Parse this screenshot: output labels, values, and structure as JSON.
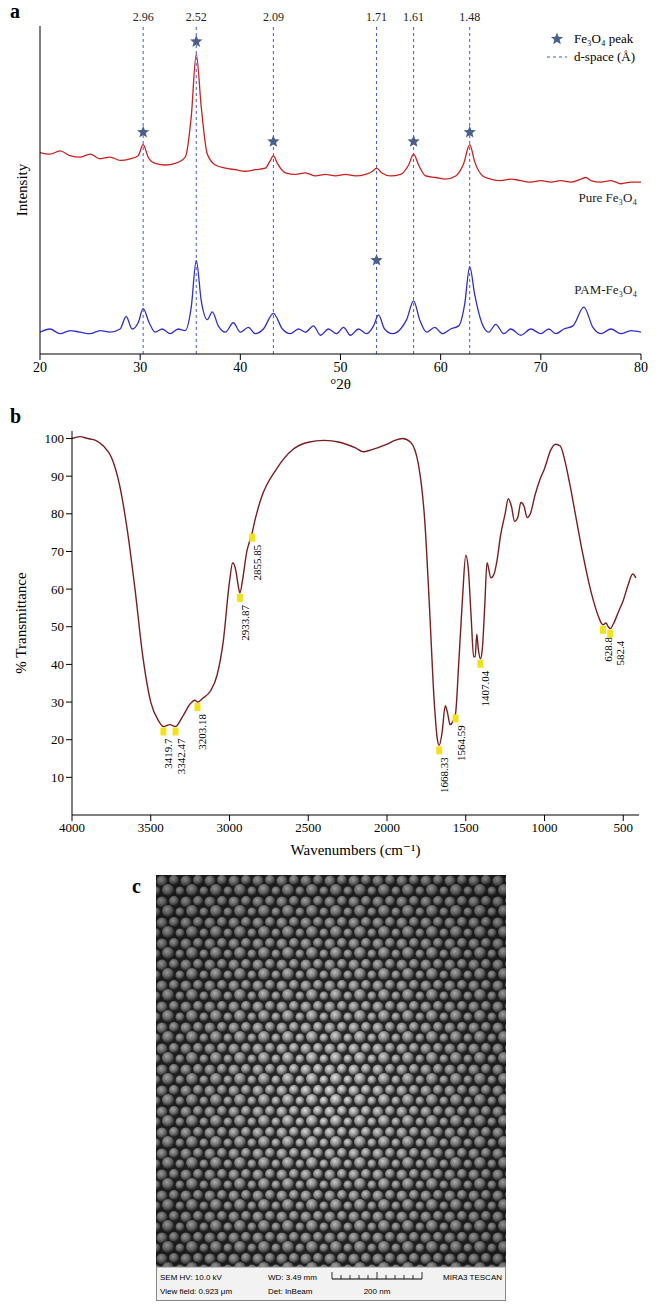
{
  "chart_data": [
    {
      "panel_label": "a",
      "type": "line",
      "x_label": "°2θ",
      "y_label": "Intensity",
      "xlim": [
        20,
        80
      ],
      "xticks": [
        20,
        30,
        40,
        50,
        60,
        70,
        80
      ],
      "ylim": [
        0,
        105
      ],
      "tick_labels": "x",
      "legend": "upper right",
      "series": [
        {
          "name": "Pure Fe₃O₄",
          "color": "#cc1f1f",
          "x": [
            20,
            21,
            22,
            23,
            24,
            25,
            26,
            27,
            28,
            29,
            29.8,
            30.3,
            30.8,
            31.5,
            32.5,
            33.5,
            34.5,
            35.1,
            35.6,
            36.1,
            36.7,
            37.5,
            38.5,
            39.5,
            40.5,
            41.5,
            42.5,
            43,
            43.3,
            43.7,
            44.5,
            45.5,
            46.5,
            47.5,
            48.5,
            49.5,
            50.5,
            51.5,
            52.5,
            53.2,
            53.6,
            54.1,
            55,
            56,
            56.8,
            57.3,
            57.8,
            58.5,
            59.5,
            60.5,
            61.5,
            62.3,
            62.9,
            63.4,
            64.2,
            65,
            66,
            67,
            68,
            69,
            70,
            71,
            72,
            73,
            74,
            74.5,
            75,
            76,
            77,
            78,
            79,
            80
          ],
          "values": [
            64.5,
            64,
            65,
            63.5,
            63,
            64,
            62.5,
            63,
            62,
            62.5,
            63.5,
            67,
            63,
            61,
            60.5,
            61,
            63,
            76,
            96,
            79,
            64,
            60.5,
            59.5,
            59,
            58.5,
            59,
            59.5,
            62,
            63.5,
            61,
            58,
            57.5,
            58,
            57,
            57.5,
            57,
            57.5,
            57,
            57.5,
            58.5,
            59.5,
            58,
            57,
            57.5,
            60.5,
            64,
            60.5,
            57,
            56.5,
            56,
            57,
            61,
            67,
            61.5,
            57,
            56,
            55.5,
            56,
            55.5,
            55,
            55.5,
            55,
            55.5,
            55,
            56,
            56.5,
            55.5,
            55,
            55.5,
            54.5,
            55,
            55
          ]
        },
        {
          "name": "PAM-Fe₃O₄",
          "color": "#2f2fd0",
          "x": [
            20,
            21,
            22,
            23,
            24,
            25,
            26,
            27,
            28,
            28.6,
            29.2,
            29.8,
            30.3,
            30.9,
            31.5,
            32.2,
            33,
            33.8,
            34.5,
            35.1,
            35.6,
            36.1,
            36.7,
            37.2,
            37.8,
            38.5,
            39.3,
            40,
            40.8,
            41.5,
            42.3,
            43.3,
            44.2,
            45,
            45.8,
            46.5,
            47.3,
            48,
            48.8,
            49.6,
            50.3,
            51,
            51.8,
            52.6,
            53.3,
            53.8,
            54.4,
            55.2,
            56,
            56.6,
            57.3,
            57.9,
            58.6,
            59.4,
            60.2,
            61,
            61.8,
            62.4,
            62.9,
            63.4,
            64.1,
            64.8,
            65.5,
            66.3,
            67,
            68,
            69,
            70,
            70.8,
            71.5,
            72.3,
            73.2,
            74.3,
            75.2,
            76,
            77,
            78,
            79,
            80
          ],
          "values": [
            7,
            8,
            6.5,
            7.5,
            7,
            6.5,
            7.5,
            7,
            8,
            12,
            8,
            10,
            14.5,
            10,
            7,
            8,
            6.5,
            8,
            7.5,
            15,
            30,
            17,
            11,
            13.5,
            9,
            7,
            10,
            7,
            8.5,
            6.5,
            8,
            13,
            8,
            6.5,
            8,
            7,
            9,
            6,
            8,
            6.5,
            8.5,
            6,
            8,
            6.5,
            9,
            12.5,
            8,
            6.5,
            8,
            11,
            17,
            11,
            7,
            8.5,
            6.5,
            8,
            9,
            16,
            28,
            19,
            10,
            7,
            9.5,
            6.5,
            8,
            6,
            8,
            6.5,
            8,
            6.5,
            8,
            9,
            15,
            8.5,
            6.5,
            8,
            6.5,
            7.5,
            7
          ]
        },
        {
          "name": "Fe₃O₄ peak",
          "type": "scatter",
          "marker": "star",
          "color": "#4a5f8a",
          "x": [
            30.3,
            35.6,
            43.3,
            53.6,
            57.3,
            62.9
          ],
          "values": [
            71,
            100,
            68,
            30,
            68,
            71
          ]
        },
        {
          "name": "d-space (Å)",
          "type": "reference_line",
          "line_style": "dashed",
          "color": "#3b5bdb",
          "x": [
            30.3,
            35.6,
            43.3,
            53.6,
            57.3,
            62.9
          ],
          "d_spacing": [
            2.96,
            2.52,
            2.09,
            1.71,
            1.61,
            1.48
          ]
        }
      ]
    },
    {
      "panel_label": "b",
      "type": "line",
      "x_label": "Wavenumbers (cm⁻¹)",
      "y_label": "% Transmittance",
      "xlim": [
        4000,
        400
      ],
      "xticks": [
        4000,
        3500,
        3000,
        2500,
        2000,
        1500,
        1000,
        500
      ],
      "ylim": [
        0,
        102
      ],
      "yticks": [
        10,
        20,
        30,
        40,
        50,
        60,
        70,
        80,
        90,
        100
      ],
      "color": "#7a1f1f",
      "x": [
        4000,
        3950,
        3900,
        3850,
        3800,
        3750,
        3700,
        3650,
        3600,
        3550,
        3500,
        3450,
        3419.7,
        3380,
        3342.47,
        3300,
        3250,
        3220,
        3203.18,
        3170,
        3120,
        3080,
        3040,
        3000,
        2980,
        2960,
        2945,
        2933.87,
        2915,
        2890,
        2870,
        2855.85,
        2840,
        2800,
        2700,
        2600,
        2500,
        2400,
        2300,
        2200,
        2150,
        2100,
        2000,
        1950,
        1900,
        1850,
        1800,
        1760,
        1730,
        1700,
        1680,
        1668.33,
        1650,
        1630,
        1615,
        1600,
        1580,
        1564.59,
        1545,
        1520,
        1500,
        1485,
        1465,
        1450,
        1440,
        1430,
        1420,
        1407.04,
        1395,
        1380,
        1365,
        1340,
        1320,
        1300,
        1280,
        1250,
        1230,
        1210,
        1190,
        1170,
        1150,
        1130,
        1110,
        1090,
        1060,
        1030,
        1000,
        960,
        930,
        900,
        870,
        840,
        800,
        760,
        720,
        690,
        660,
        640,
        628.8,
        610,
        595,
        582.4,
        560,
        530,
        500,
        470,
        440,
        420
      ],
      "values": [
        100,
        100.5,
        100,
        99.5,
        98,
        95,
        88,
        76,
        60,
        42,
        30,
        25,
        23.5,
        24,
        23.5,
        26,
        29.5,
        30.5,
        30,
        31,
        33,
        37,
        46,
        62,
        67,
        65,
        61,
        59,
        63,
        70,
        73,
        75,
        78,
        84,
        92,
        97,
        99,
        99.5,
        99,
        97.5,
        96.5,
        97,
        98.5,
        99.5,
        100,
        99,
        93,
        78,
        55,
        30,
        20,
        18.5,
        22,
        29,
        27,
        24,
        25,
        27,
        40,
        58,
        69,
        66,
        52,
        42,
        42,
        48,
        44,
        41.5,
        44,
        55,
        67,
        63,
        64,
        68,
        74,
        80,
        84,
        82,
        78,
        79,
        83,
        82,
        79,
        80,
        85,
        89,
        92,
        97,
        98.5,
        98,
        94,
        88,
        79,
        70,
        62,
        57,
        53,
        51,
        50.5,
        51,
        50,
        49.5,
        51,
        54,
        57,
        61,
        64,
        63
      ],
      "peaks": {
        "color": "#f2e21c",
        "x": [
          3419.7,
          3342.47,
          3203.18,
          2933.87,
          2855.85,
          1668.33,
          1564.59,
          1407.04,
          628.8,
          582.4
        ]
      }
    }
  ],
  "panel_c": {
    "panel_label": "c",
    "info_bar": {
      "row_1": [
        "SEM HV: 10.0 kV",
        "WD: 3.49 mm"
      ],
      "row_2": [
        "View field: 0.923 μm",
        "Det: InBeam"
      ],
      "scale_bar": "200 nm",
      "brand": "MIRA3 TESCAN"
    }
  }
}
